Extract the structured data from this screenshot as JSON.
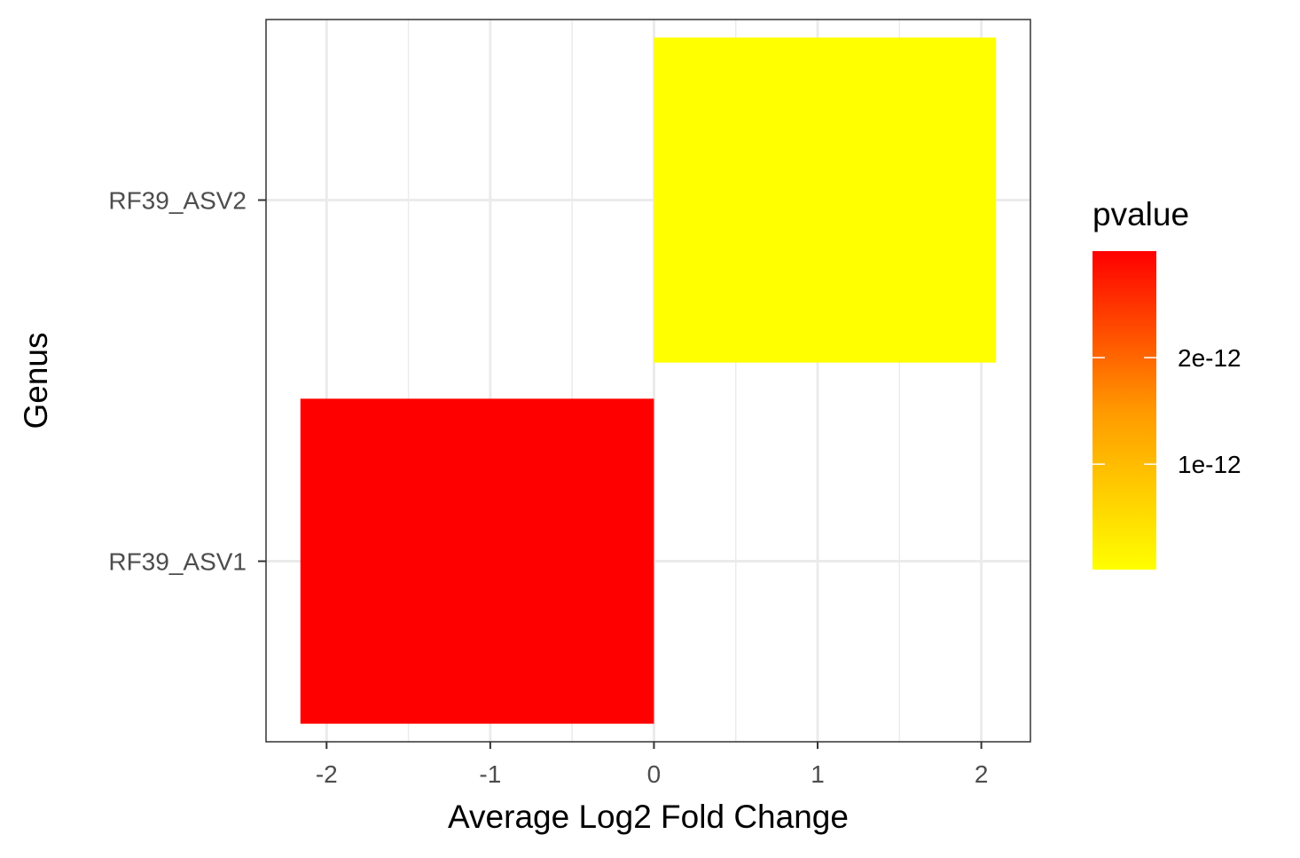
{
  "chart_data": {
    "type": "bar",
    "orientation": "horizontal",
    "categories": [
      "RF39_ASV1",
      "RF39_ASV2"
    ],
    "values": [
      -2.16,
      2.09
    ],
    "pvalues": [
      3e-12,
      1e-14
    ],
    "bar_colors": [
      "#FF0000",
      "#FFFF00"
    ],
    "xlabel": "Average Log2 Fold Change",
    "ylabel": "Genus",
    "xlim": [
      -2.37,
      2.3
    ],
    "xticks": [
      -2,
      -1,
      0,
      1,
      2
    ],
    "xtick_labels": [
      "-2",
      "-1",
      "0",
      "1",
      "2"
    ],
    "grid": true,
    "legend": {
      "title": "pvalue",
      "placement": "right",
      "gradient_low": "#FFFF00",
      "gradient_mid": "#FF9900",
      "gradient_high": "#FF0000",
      "range": [
        1e-14,
        3e-12
      ],
      "ticks": [
        2e-12,
        1e-12
      ],
      "tick_labels": [
        "2e-12",
        "1e-12"
      ]
    }
  }
}
